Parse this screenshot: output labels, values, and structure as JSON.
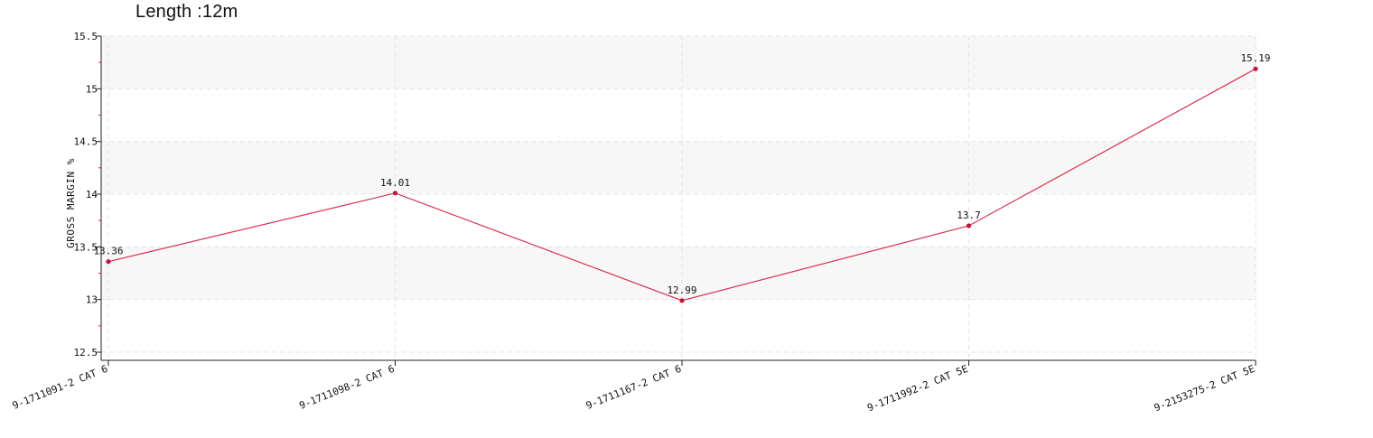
{
  "header": {
    "title": "Length :12m"
  },
  "chart_data": {
    "type": "line",
    "title": "Length :12m",
    "xlabel": "",
    "ylabel": "GROSS MARGIN %",
    "categories": [
      "9-1711091-2 CAT 6",
      "9-1711098-2 CAT 6",
      "9-1711167-2 CAT 6",
      "9-1711992-2 CAT 5E",
      "9-2153275-2 CAT 5E"
    ],
    "series": [
      {
        "values": [
          13.36,
          14.01,
          12.99,
          13.7,
          15.19
        ],
        "color": "#d6334c"
      }
    ],
    "data_labels": [
      "13.36",
      "14.01",
      "12.99",
      "13.7",
      "15.19"
    ],
    "ylim": [
      12.5,
      15.5
    ],
    "yticks": [
      12.5,
      13,
      13.5,
      14,
      14.5,
      15,
      15.5
    ],
    "ytick_labels": [
      "12.5",
      "13",
      "13.5",
      "14",
      "14.5",
      "15",
      "15.5"
    ],
    "grid": true,
    "alternating_bands": true,
    "colors": {
      "line": "#d6334c",
      "marker": "#c0143c",
      "band": "#f7f7f7",
      "grid": "#e3e3e3",
      "axis": "#222222"
    }
  }
}
